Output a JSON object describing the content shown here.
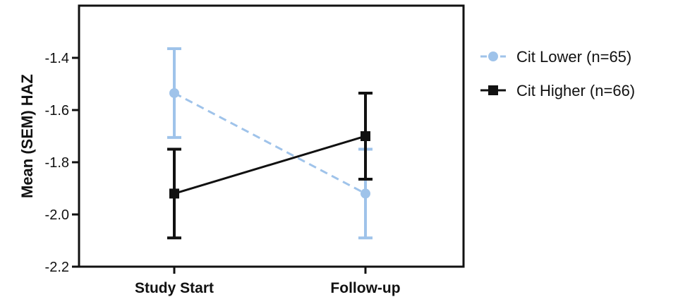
{
  "chart_data": {
    "type": "line",
    "categories": [
      "Study Start",
      "Follow-up"
    ],
    "ylabel": "Mean (SEM) HAZ",
    "xlabel": "",
    "ylim": [
      -2.2,
      -1.2
    ],
    "yticks": [
      -1.4,
      -1.6,
      -1.8,
      -2.0,
      -2.2
    ],
    "ytick_labels": [
      "-1.4",
      "-1.6",
      "-1.8",
      "-2.0",
      "-2.2"
    ],
    "grid": false,
    "legend_position": "right",
    "series": [
      {
        "name": "Cit Lower (n=65)",
        "values": [
          -1.535,
          -1.92
        ],
        "error": [
          0.17,
          0.17
        ],
        "color": "#9fc3ea",
        "line_style": "dashed",
        "marker": "circle"
      },
      {
        "name": "Cit Higher (n=66)",
        "values": [
          -1.92,
          -1.7
        ],
        "error": [
          0.17,
          0.165
        ],
        "color": "#111111",
        "line_style": "solid",
        "marker": "square"
      }
    ]
  }
}
